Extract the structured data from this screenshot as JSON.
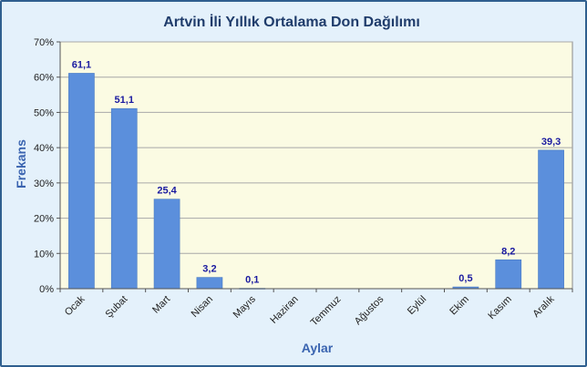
{
  "chart_data": {
    "type": "bar",
    "title": "Artvin İli Yıllık Ortalama Don Dağılımı",
    "xlabel": "Aylar",
    "ylabel": "Frekans",
    "ylim": [
      0,
      70
    ],
    "yticks": [
      "0%",
      "10%",
      "20%",
      "30%",
      "40%",
      "50%",
      "60%",
      "70%"
    ],
    "ytick_values": [
      0,
      10,
      20,
      30,
      40,
      50,
      60,
      70
    ],
    "categories": [
      "Ocak",
      "Şubat",
      "Mart",
      "Nisan",
      "Mayıs",
      "Haziran",
      "Temmuz",
      "Ağustos",
      "Eylül",
      "Ekim",
      "Kasım",
      "Aralık"
    ],
    "values": [
      61.1,
      51.1,
      25.4,
      3.2,
      0.1,
      null,
      null,
      null,
      null,
      0.5,
      8.2,
      39.3
    ],
    "data_labels": [
      "61,1",
      "51,1",
      "25,4",
      "3,2",
      "0,1",
      "",
      "",
      "",
      "",
      "0,5",
      "8,2",
      "39,3"
    ],
    "grid": true,
    "legend": "none",
    "colors": {
      "bar": "#5b8fdc",
      "bar_edge": "#4a7bc4",
      "plot_bg": "#fbfbe3",
      "chart_bg": "#e4f1fb",
      "frame": "#2f5f8f",
      "gridline": "#a8a8a8",
      "data_label": "#1a1aa0",
      "axis_title": "#3a64b0",
      "title": "#1f3c6b"
    }
  }
}
